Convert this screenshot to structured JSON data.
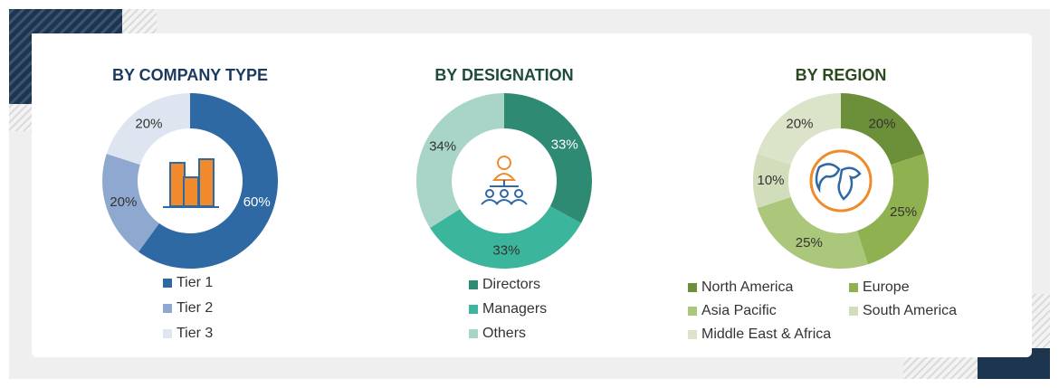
{
  "chart_data": [
    {
      "type": "donut",
      "title": "BY COMPANY TYPE",
      "categories": [
        "Tier 1",
        "Tier 2",
        "Tier 3"
      ],
      "values": [
        60,
        20,
        20
      ],
      "value_labels": [
        "60%",
        "20%",
        "20%"
      ],
      "colors": [
        "#2f69a3",
        "#8fa8cf",
        "#dfe5f0"
      ]
    },
    {
      "type": "donut",
      "title": "BY DESIGNATION",
      "categories": [
        "Directors",
        "Managers",
        "Others"
      ],
      "values": [
        33,
        33,
        34
      ],
      "value_labels": [
        "33%",
        "33%",
        "34%"
      ],
      "colors": [
        "#2e8a73",
        "#3bb59b",
        "#a8d5c8"
      ]
    },
    {
      "type": "donut",
      "title": "BY REGION",
      "categories": [
        "North America",
        "Europe",
        "Asia Pacific",
        "South America",
        "Middle East & Africa"
      ],
      "values": [
        20,
        25,
        25,
        10,
        20
      ],
      "value_labels": [
        "20%",
        "25%",
        "25%",
        "10%",
        "20%"
      ],
      "colors": [
        "#6c8f3a",
        "#8fb14f",
        "#abc77c",
        "#d2debb",
        "#dbe4c9"
      ]
    }
  ]
}
